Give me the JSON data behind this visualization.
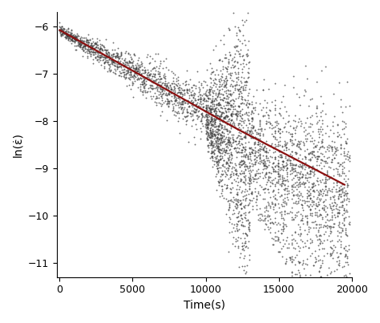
{
  "title": "",
  "xlabel": "Time(s)",
  "ylabel": "ln(ε̇)",
  "xlim": [
    -200,
    20000
  ],
  "ylim": [
    -11.3,
    -5.7
  ],
  "yticks": [
    -11,
    -10,
    -9,
    -8,
    -7,
    -6
  ],
  "xticks": [
    0,
    5000,
    10000,
    15000,
    20000
  ],
  "background_color": "#ffffff",
  "dot_color": "#404040",
  "dot_size": 1.8,
  "dot_alpha": 0.75,
  "line_color": "#8b1010",
  "line_width": 1.6,
  "seg1_x0": 0,
  "seg1_y0": -6.08,
  "seg1_x1": 12200,
  "seg1_y1": -8.18,
  "seg2_x0": 12200,
  "seg2_y0": -8.18,
  "seg2_x1": 19500,
  "seg2_y1": -9.35,
  "noise_seed": 7
}
